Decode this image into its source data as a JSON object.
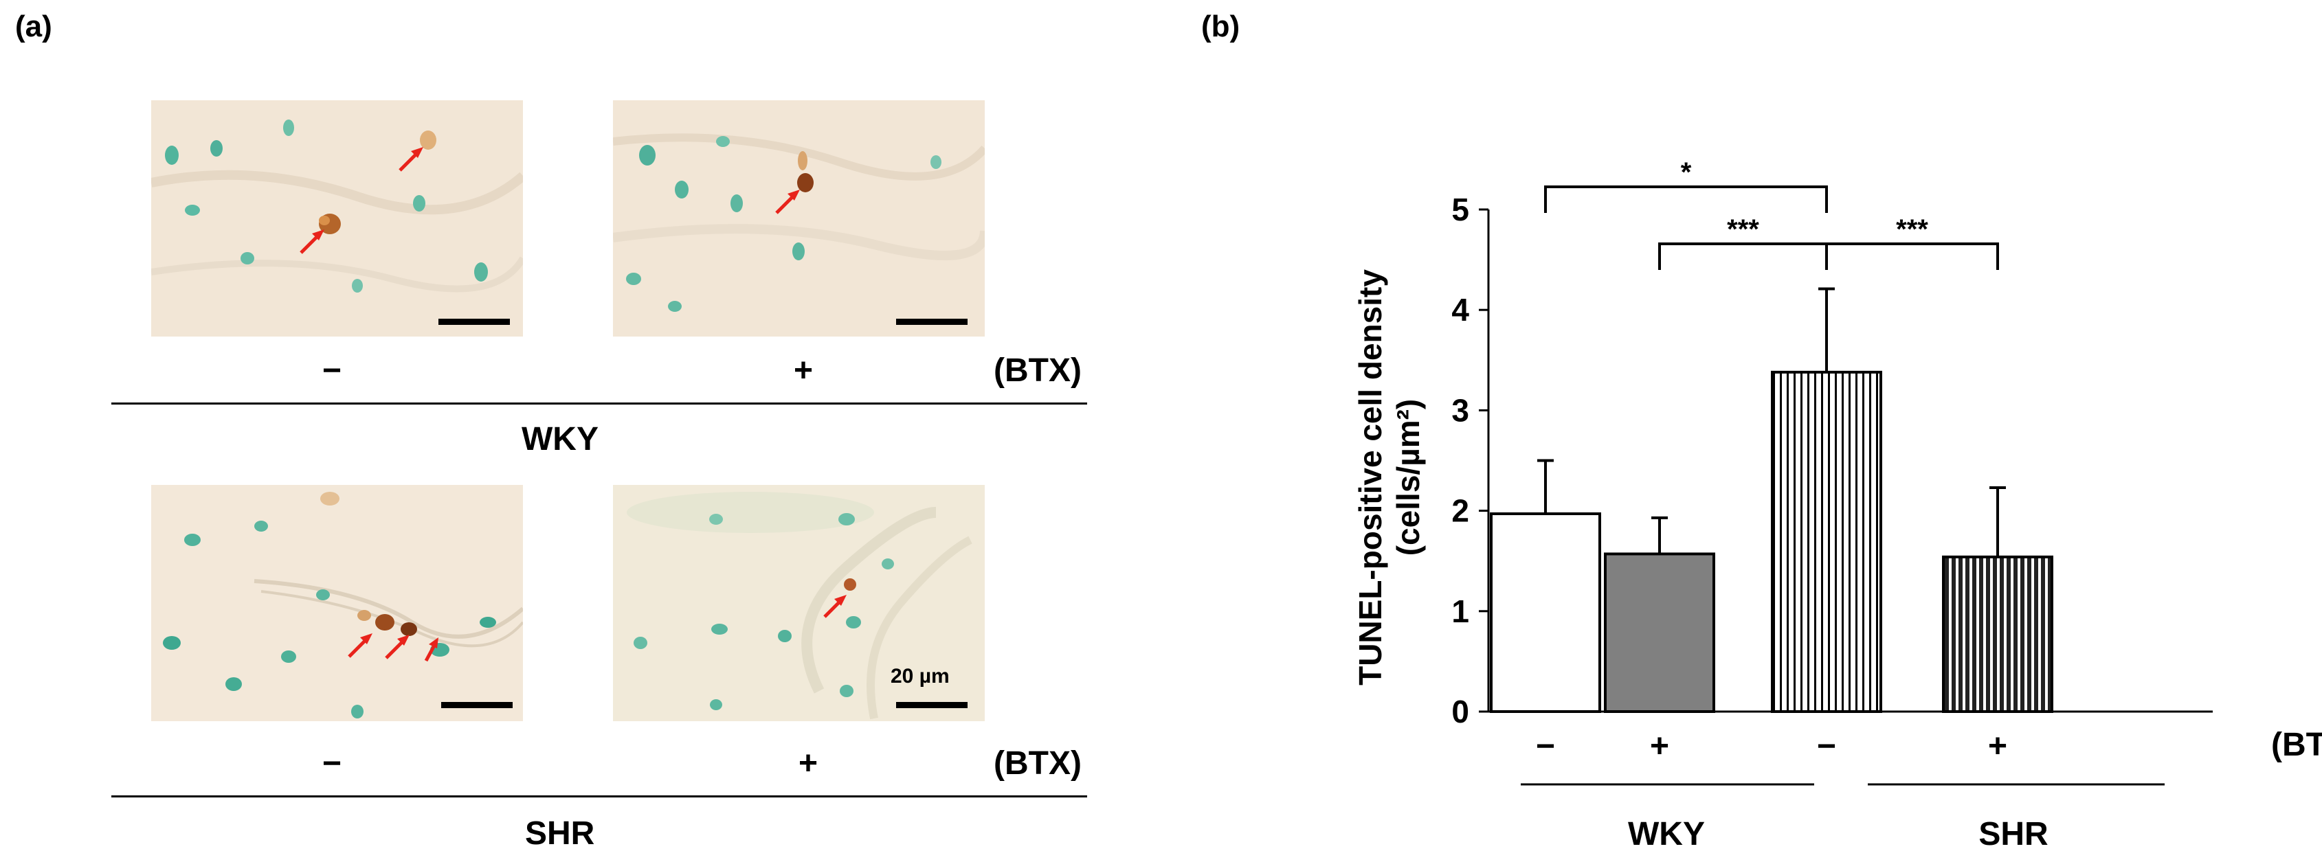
{
  "panel_a": {
    "label": "(a)",
    "row_wky": {
      "group": "WKY",
      "minus": "−",
      "plus": "+",
      "btx": "(BTX)"
    },
    "row_shr": {
      "group": "SHR",
      "minus": "−",
      "plus": "+",
      "btx": "(BTX)"
    },
    "scale_label": "20 µm"
  },
  "panel_b": {
    "label": "(b)",
    "btx": "(BTX)",
    "group_wky": "WKY",
    "group_shr": "SHR"
  },
  "chart_data": {
    "type": "bar",
    "categories": [
      "−",
      "+",
      "−",
      "+"
    ],
    "values": [
      1.97,
      1.57,
      3.38,
      1.54
    ],
    "errors": [
      0.53,
      0.36,
      0.83,
      0.69
    ],
    "ylabel_line1": "TUNEL-positive cell density",
    "ylabel_line2": "(cells/µm²)",
    "ylim": [
      0,
      5
    ],
    "yticks": [
      "0",
      "1",
      "2",
      "3",
      "4",
      "5"
    ],
    "fills": [
      "white",
      "#808080",
      "vertical-stripes-light",
      "vertical-stripes-dark"
    ],
    "significance": [
      {
        "from": 0,
        "to": 2,
        "label": "*"
      },
      {
        "from": 1,
        "to": 2,
        "label": "***"
      },
      {
        "from": 2,
        "to": 3,
        "label": "***"
      }
    ]
  }
}
